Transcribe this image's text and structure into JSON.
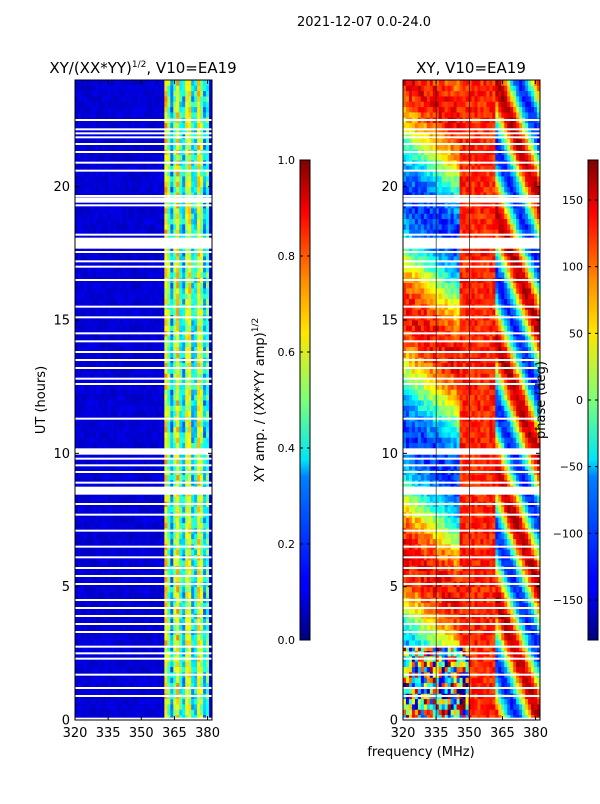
{
  "suptitle": "2021-12-07 0.0-24.0",
  "chart_data": [
    {
      "type": "heatmap",
      "title_main": "XY/(XX*YY)",
      "title_sup": "1/2",
      "title_rest": ", V10=EA19",
      "xlabel": "",
      "ylabel": "UT (hours)",
      "xlim": [
        320,
        382
      ],
      "ylim": [
        0,
        24
      ],
      "xticks": [
        320,
        335,
        350,
        365,
        380
      ],
      "yticks": [
        0,
        5,
        10,
        15,
        20
      ],
      "colorbar": {
        "label_main": "XY amp. / (XX*YY amp)",
        "label_sup": "1/2",
        "range": [
          0.0,
          1.0
        ],
        "ticks": [
          "0.0",
          "0.2",
          "0.4",
          "0.6",
          "0.8",
          "1.0"
        ]
      }
    },
    {
      "type": "heatmap",
      "title": "XY, V10=EA19",
      "xlabel": "frequency (MHz)",
      "ylabel": "",
      "xlim": [
        320,
        382
      ],
      "ylim": [
        0,
        24
      ],
      "xticks": [
        320,
        335,
        350,
        365,
        380
      ],
      "yticks": [
        0,
        5,
        10,
        15,
        20
      ],
      "colorbar": {
        "label": "phase (deg)",
        "range": [
          -180,
          180
        ],
        "ticks": [
          -150,
          -100,
          -50,
          0,
          50,
          100,
          150
        ]
      }
    }
  ],
  "flagged_hours": [
    0.05,
    0.9,
    1.2,
    1.7,
    2.3,
    2.5,
    2.75,
    3.3,
    3.6,
    3.9,
    4.2,
    4.5,
    5.1,
    5.4,
    5.7,
    6.1,
    6.5,
    7.1,
    7.7,
    8.1,
    8.55,
    8.7,
    8.9,
    9.3,
    9.55,
    9.8,
    10.0,
    10.15,
    11.3,
    12.6,
    12.8,
    13.2,
    13.5,
    13.8,
    14.2,
    14.5,
    15.1,
    15.5,
    16.5,
    17.0,
    17.2,
    17.55,
    17.9,
    18.05,
    18.2,
    19.3,
    19.55,
    19.65,
    20.6,
    20.9,
    21.3,
    21.6,
    21.85,
    22.0,
    22.15,
    22.5
  ]
}
